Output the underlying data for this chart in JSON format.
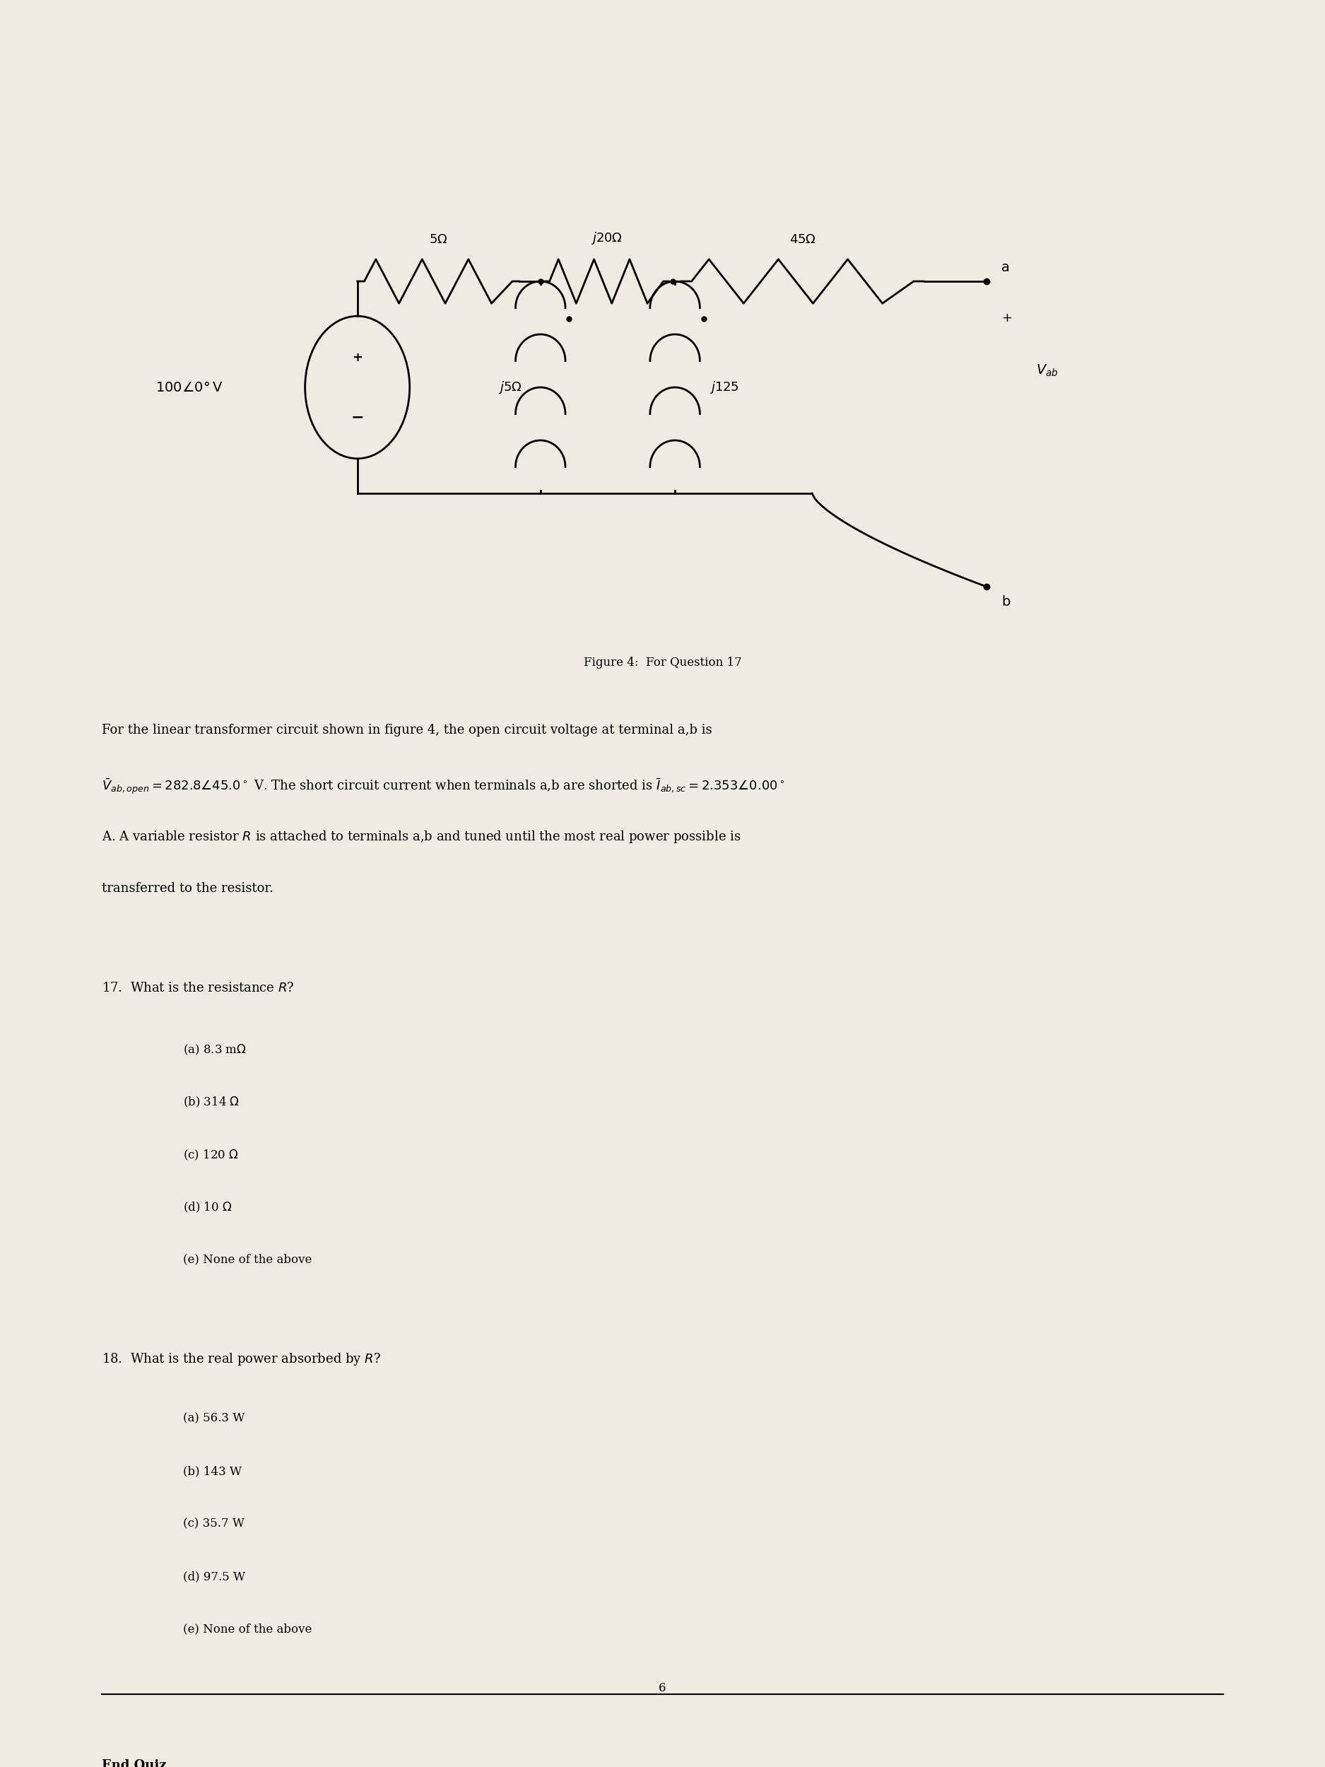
{
  "background_color": "#f0ebe0",
  "page_color": "#ffffff",
  "figure_caption": "Figure 4:  For Question 17",
  "q17_stem": "17.  What is the resistance $R$?",
  "q17_options": [
    "(a) 8.3 m$\\Omega$",
    "(b) 314 $\\Omega$",
    "(c) 120 $\\Omega$",
    "(d) 10 $\\Omega$",
    "(e) None of the above"
  ],
  "q18_stem": "18.  What is the real power absorbed by $R$?",
  "q18_options": [
    "(a) 56.3 W",
    "(b) 143 W",
    "(c) 35.7 W",
    "(d) 97.5 W",
    "(e) None of the above"
  ],
  "end_text": "End Quiz",
  "page_number": "6",
  "font_size_body": 13,
  "font_size_caption": 12,
  "font_size_q": 13,
  "font_size_option": 12
}
